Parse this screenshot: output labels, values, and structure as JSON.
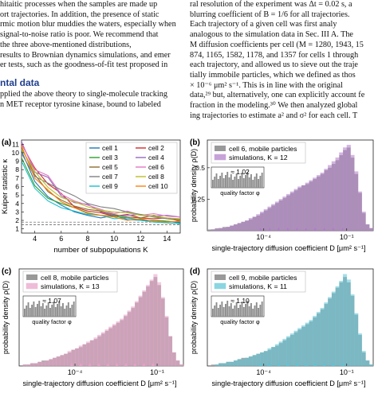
{
  "text": {
    "left_lines": [
      "hitaitic processes when the samples are made up",
      "ort trajectories. In addition, the presence of static",
      "rmic motion blur muddies the waters, especially when",
      "signal-to-noise ratio is poor. We recommend that",
      "the three above-mentioned distributions,",
      "results to Brownian dynamics simulations, and emer",
      "er tests, such as the goodness-of-fit test proposed in"
    ],
    "heading": "ntal data",
    "left_lines2": [
      "pplied the above theory to single-molecule tracking",
      "n MET receptor tyrosine kinase, bound to labeled"
    ],
    "right_lines": [
      "ral resolution of the experiment was Δt = 0.02 s, a",
      "blurring coefficient of B = 1/6 for all trajectories.",
      "   Each trajectory of a given cell was first analy",
      "analogous to the simulation data in Sec. III A. The",
      "M diffusion coefficients per cell (M = 1280, 1943, 15",
      "874, 1165, 1582, 1178, and 1357 for cells 1 through",
      "each trajectory, and allowed us to sieve out the traje",
      "tially immobile particles, which we defined as thos",
      "× 10⁻⁶ μm² s⁻¹. This is in line with the original",
      "data,²⁹ but, alternatively, one can explicitly account fe",
      "fraction in the modeling.³⁰ We then analyzed global",
      "ing trajectories to estimate a² and σ² for each cell. T"
    ]
  },
  "panels": {
    "a": {
      "label": "(a)",
      "xlabel": "number of subpopulations K",
      "ylabel": "Kuiper statistic κ",
      "xticks": [
        "4",
        "6",
        "8",
        "10",
        "12",
        "14"
      ],
      "yticks": [
        "1",
        "2",
        "3",
        "4",
        "5",
        "6",
        "7",
        "8",
        "9",
        "10",
        "11"
      ]
    },
    "b": {
      "label": "(b)",
      "xlabel": "single-trajectory diffusion coefficient D [μm² s⁻¹]",
      "ylabel": "probability density ρ(D)",
      "xticks": [
        "10⁻⁴",
        "10⁻¹"
      ],
      "yticks": [
        "0.25",
        "0.5"
      ],
      "legend": [
        "cell 6, mobile particles",
        "simulations, K = 12"
      ],
      "inset_text": "≈ 1.02",
      "inset_xlabel": "quality factor φ"
    },
    "c": {
      "label": "(c)",
      "xlabel": "single-trajectory diffusion coefficient D [μm² s⁻¹]",
      "ylabel": "probability density ρ(D)",
      "xticks": [
        "10⁻⁴",
        "10⁻¹"
      ],
      "legend": [
        "cell 8, mobile particles",
        "simulations, K = 13"
      ],
      "inset_text": "≈ 1.07",
      "inset_xlabel": "quality factor φ"
    },
    "d": {
      "label": "(d)",
      "xlabel": "single-trajectory diffusion coefficient D [μm² s⁻¹]",
      "ylabel": "probability density ρ(D)",
      "xticks": [
        "10⁻⁴",
        "10⁻¹"
      ],
      "legend": [
        "cell 9, mobile particles",
        "simulations, K = 11"
      ],
      "inset_text": "≈ 1.10",
      "inset_xlabel": "quality factor φ"
    }
  },
  "chart_data": [
    {
      "type": "line",
      "xlabel": "number of subpopulations K",
      "ylabel": "Kuiper statistic κ",
      "xlim": [
        3,
        15
      ],
      "ylim": [
        0.5,
        11.5
      ],
      "x": [
        3,
        4,
        5,
        6,
        7,
        8,
        9,
        10,
        11,
        12,
        13,
        14,
        15
      ],
      "reference_lines": [
        1.5,
        1.8
      ],
      "series": [
        {
          "name": "cell 1",
          "color": "#1f77b4",
          "values": [
            10.2,
            6.6,
            4.8,
            3.8,
            3.0,
            2.6,
            2.3,
            2.6,
            2.1,
            2.0,
            2.0,
            1.9,
            1.7
          ]
        },
        {
          "name": "cell 2",
          "color": "#d62728",
          "values": [
            11.0,
            8.2,
            6.3,
            5.2,
            3.6,
            3.1,
            2.9,
            2.5,
            2.7,
            2.3,
            2.2,
            2.3,
            1.9
          ]
        },
        {
          "name": "cell 3",
          "color": "#2ca02c",
          "values": [
            9.4,
            6.1,
            4.6,
            4.0,
            3.5,
            2.9,
            2.6,
            2.5,
            2.3,
            2.1,
            2.0,
            1.9,
            1.8
          ]
        },
        {
          "name": "cell 4",
          "color": "#9467bd",
          "values": [
            11.3,
            7.7,
            7.1,
            4.9,
            4.1,
            3.9,
            3.0,
            2.6,
            2.6,
            2.7,
            2.5,
            2.6,
            2.4
          ]
        },
        {
          "name": "cell 5",
          "color": "#8c6d31",
          "values": [
            10.6,
            7.4,
            5.4,
            4.4,
            3.7,
            3.3,
            3.1,
            2.7,
            2.4,
            2.3,
            2.6,
            2.2,
            2.1
          ]
        },
        {
          "name": "cell 6",
          "color": "#e377c2",
          "values": [
            11.1,
            8.0,
            7.3,
            5.1,
            4.3,
            3.8,
            3.3,
            2.8,
            3.1,
            2.6,
            2.8,
            2.5,
            2.4
          ]
        },
        {
          "name": "cell 7",
          "color": "#7f7f7f",
          "values": [
            9.9,
            7.2,
            6.4,
            5.6,
            4.9,
            4.0,
            3.6,
            3.4,
            3.0,
            2.7,
            2.4,
            2.2,
            2.0
          ]
        },
        {
          "name": "cell 8",
          "color": "#bcbd22",
          "values": [
            10.4,
            7.8,
            5.9,
            4.7,
            4.2,
            3.6,
            3.2,
            3.0,
            2.9,
            2.6,
            2.5,
            2.3,
            2.2
          ]
        },
        {
          "name": "cell 9",
          "color": "#17becf",
          "values": [
            9.0,
            5.8,
            4.3,
            3.5,
            3.1,
            2.7,
            2.6,
            2.2,
            2.3,
            2.0,
            1.8,
            1.7,
            1.6
          ]
        },
        {
          "name": "cell 10",
          "color": "#ff7f0e",
          "values": [
            10.8,
            7.0,
            5.6,
            4.2,
            3.5,
            2.8,
            2.6,
            2.4,
            2.0,
            2.2,
            1.9,
            1.8,
            1.9
          ]
        }
      ]
    },
    {
      "type": "bar",
      "xlabel": "single-trajectory diffusion coefficient D [μm² s⁻¹]",
      "ylabel": "probability density ρ(D)",
      "x_scale": "log",
      "ylim": [
        0,
        0.72
      ],
      "series": [
        {
          "name": "cell 6, mobile particles",
          "color": "#999999",
          "values": [
            0.01,
            0.01,
            0.02,
            0.02,
            0.03,
            0.03,
            0.04,
            0.05,
            0.06,
            0.07,
            0.08,
            0.09,
            0.11,
            0.12,
            0.14,
            0.16,
            0.18,
            0.2,
            0.22,
            0.24,
            0.26,
            0.28,
            0.3,
            0.32,
            0.34,
            0.36,
            0.37,
            0.39,
            0.41,
            0.43,
            0.45,
            0.48,
            0.5,
            0.53,
            0.56,
            0.6,
            0.64,
            0.66,
            0.58,
            0.45,
            0.3,
            0.14,
            0.05,
            0.02
          ]
        },
        {
          "name": "simulations, K = 12",
          "color": "#b07cc8",
          "values": [
            0.0,
            0.01,
            0.01,
            0.02,
            0.02,
            0.03,
            0.04,
            0.05,
            0.06,
            0.07,
            0.08,
            0.1,
            0.11,
            0.13,
            0.15,
            0.17,
            0.19,
            0.21,
            0.23,
            0.25,
            0.27,
            0.29,
            0.31,
            0.33,
            0.35,
            0.36,
            0.38,
            0.4,
            0.42,
            0.44,
            0.46,
            0.49,
            0.52,
            0.55,
            0.58,
            0.62,
            0.66,
            0.68,
            0.6,
            0.47,
            0.31,
            0.15,
            0.05,
            0.02
          ]
        }
      ],
      "inset": {
        "label": "quality factor φ",
        "value": "≈ 1.02"
      }
    },
    {
      "type": "bar",
      "xlabel": "single-trajectory diffusion coefficient D [μm² s⁻¹]",
      "ylabel": "probability density ρ(D)",
      "x_scale": "log",
      "ylim": [
        0,
        0.72
      ],
      "series": [
        {
          "name": "cell 8, mobile particles",
          "color": "#999999",
          "values": [
            0.0,
            0.01,
            0.01,
            0.02,
            0.02,
            0.03,
            0.04,
            0.04,
            0.05,
            0.06,
            0.07,
            0.08,
            0.09,
            0.1,
            0.12,
            0.13,
            0.14,
            0.16,
            0.17,
            0.19,
            0.2,
            0.22,
            0.24,
            0.26,
            0.28,
            0.3,
            0.32,
            0.34,
            0.37,
            0.4,
            0.43,
            0.47,
            0.51,
            0.55,
            0.59,
            0.63,
            0.66,
            0.6,
            0.5,
            0.36,
            0.22,
            0.1,
            0.04,
            0.01
          ]
        },
        {
          "name": "simulations, K = 13",
          "color": "#e8a0c8",
          "values": [
            0.0,
            0.01,
            0.01,
            0.02,
            0.02,
            0.03,
            0.03,
            0.04,
            0.05,
            0.06,
            0.07,
            0.08,
            0.09,
            0.11,
            0.12,
            0.13,
            0.15,
            0.16,
            0.18,
            0.19,
            0.21,
            0.23,
            0.25,
            0.27,
            0.29,
            0.31,
            0.33,
            0.35,
            0.38,
            0.41,
            0.44,
            0.48,
            0.52,
            0.56,
            0.6,
            0.64,
            0.68,
            0.62,
            0.51,
            0.37,
            0.22,
            0.1,
            0.04,
            0.01
          ]
        }
      ],
      "inset": {
        "label": "quality factor φ",
        "value": "≈ 1.07"
      }
    },
    {
      "type": "bar",
      "xlabel": "single-trajectory diffusion coefficient D [μm² s⁻¹]",
      "ylabel": "probability density ρ(D)",
      "x_scale": "log",
      "ylim": [
        0,
        0.72
      ],
      "series": [
        {
          "name": "cell 9, mobile particles",
          "color": "#999999",
          "values": [
            0.0,
            0.01,
            0.01,
            0.02,
            0.02,
            0.03,
            0.03,
            0.04,
            0.05,
            0.06,
            0.06,
            0.07,
            0.08,
            0.09,
            0.1,
            0.11,
            0.12,
            0.14,
            0.15,
            0.17,
            0.19,
            0.21,
            0.23,
            0.25,
            0.27,
            0.29,
            0.31,
            0.33,
            0.36,
            0.39,
            0.42,
            0.46,
            0.5,
            0.54,
            0.58,
            0.62,
            0.66,
            0.62,
            0.52,
            0.38,
            0.23,
            0.1,
            0.04,
            0.01
          ]
        },
        {
          "name": "simulations, K = 11",
          "color": "#5bc4d6",
          "values": [
            0.0,
            0.0,
            0.01,
            0.02,
            0.02,
            0.03,
            0.03,
            0.04,
            0.05,
            0.05,
            0.06,
            0.07,
            0.08,
            0.09,
            0.1,
            0.11,
            0.13,
            0.14,
            0.16,
            0.18,
            0.2,
            0.22,
            0.24,
            0.26,
            0.28,
            0.3,
            0.32,
            0.34,
            0.37,
            0.4,
            0.43,
            0.47,
            0.51,
            0.55,
            0.59,
            0.63,
            0.68,
            0.64,
            0.53,
            0.39,
            0.24,
            0.11,
            0.04,
            0.01
          ]
        }
      ],
      "inset": {
        "label": "quality factor φ",
        "value": "≈ 1.10"
      }
    }
  ]
}
